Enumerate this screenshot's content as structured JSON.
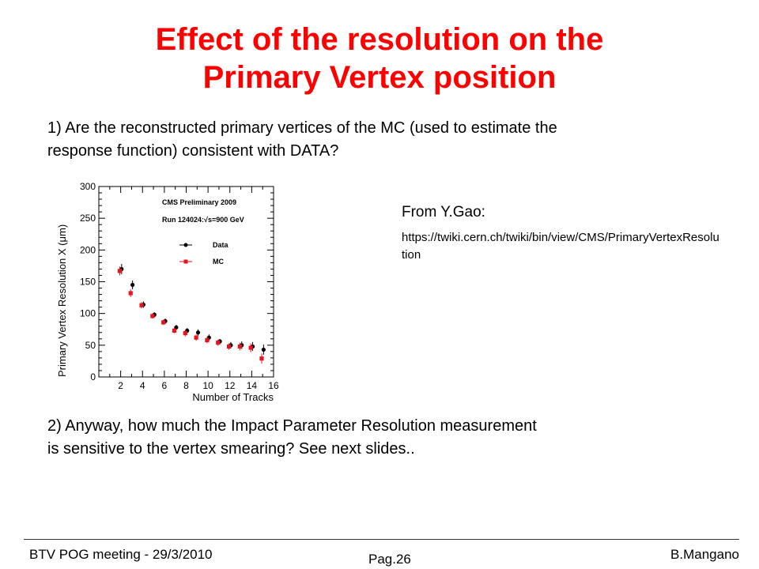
{
  "slide": {
    "title_line1": "Effect of the resolution on the",
    "title_line2": "Primary Vertex position",
    "question1": "1) Are the reconstructed primary vertices of the MC (used to estimate the response function) consistent with DATA?",
    "question2": "2) Anyway, how much the Impact Parameter Resolution measurement is sensitive to the vertex smearing? See next slides..",
    "source_heading": "From Y.Gao:",
    "source_url": "https://twiki.cern.ch/twiki/bin/view/CMS/PrimaryVertexResolution"
  },
  "footer": {
    "left": "BTV POG meeting - 29/3/2010",
    "center": "Pag.26",
    "right": "B.Mangano"
  },
  "chart_data": {
    "type": "scatter",
    "title": "CMS Preliminary 2009",
    "subtitle": "Run 124024:√s=900 GeV",
    "xlabel": "Number of Tracks",
    "ylabel": "Primary Vertex Resolution X (μm)",
    "xlim": [
      0,
      16
    ],
    "ylim": [
      0,
      300
    ],
    "xticks": [
      2,
      4,
      6,
      8,
      10,
      12,
      14,
      16
    ],
    "yticks": [
      0,
      50,
      100,
      150,
      200,
      250,
      300
    ],
    "legend_position": "top-right",
    "grid": false,
    "series": [
      {
        "name": "Data",
        "color": "#000000",
        "x": [
          2,
          3,
          4,
          5,
          6,
          7,
          8,
          9,
          10,
          11,
          12,
          13,
          14,
          15
        ],
        "values": [
          170,
          145,
          114,
          98,
          88,
          78,
          73,
          70,
          62,
          56,
          50,
          50,
          48,
          43
        ],
        "errors": [
          8,
          7,
          5,
          4,
          4,
          4,
          4,
          5,
          5,
          4,
          5,
          6,
          7,
          8
        ]
      },
      {
        "name": "MC",
        "color": "#e8141e",
        "x": [
          2,
          3,
          4,
          5,
          6,
          7,
          8,
          9,
          10,
          11,
          12,
          13,
          14,
          15
        ],
        "values": [
          167,
          132,
          113,
          96,
          86,
          73,
          69,
          62,
          58,
          54,
          48,
          48,
          46,
          29
        ],
        "errors": [
          7,
          6,
          5,
          4,
          4,
          4,
          5,
          5,
          5,
          5,
          5,
          6,
          7,
          8
        ]
      }
    ]
  }
}
